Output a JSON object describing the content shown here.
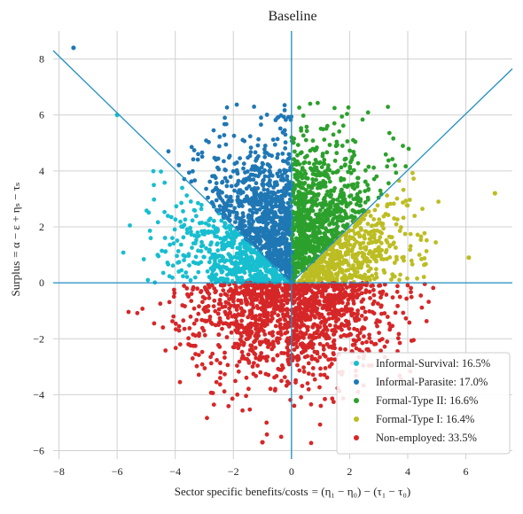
{
  "chart_data": {
    "type": "scatter",
    "title": "Baseline",
    "xlabel_main": "Sector specific benefits/costs",
    "xlabel_eq": "= (η₁ − η₀) − (τ₁ − τ₀)",
    "ylabel_main": "Surplus",
    "ylabel_eq": "= α − ε + ηₛ − τₛ",
    "xlim": [
      -8.2,
      7.6
    ],
    "ylim": [
      -6.3,
      9.0
    ],
    "xticks": [
      -8,
      -6,
      -4,
      -2,
      0,
      2,
      4,
      6
    ],
    "yticks": [
      -6,
      -4,
      -2,
      0,
      2,
      4,
      6,
      8
    ],
    "grid": true,
    "legend_position": "lower-right",
    "boundary_color": "#1f8fc4",
    "boundaries": [
      {
        "name": "vertical",
        "points": [
          [
            0,
            -6.3
          ],
          [
            0,
            9.0
          ]
        ]
      },
      {
        "name": "horizontal",
        "points": [
          [
            -8.2,
            0
          ],
          [
            7.6,
            0
          ]
        ]
      },
      {
        "name": "left-diagonal",
        "points": [
          [
            -8.2,
            8.3
          ],
          [
            0,
            0
          ]
        ]
      },
      {
        "name": "right-diagonal",
        "points": [
          [
            0,
            0
          ],
          [
            7.6,
            7.65
          ]
        ]
      }
    ],
    "series": [
      {
        "name": "Informal-Survival: 16.5%",
        "share": 0.165,
        "color": "#17becf",
        "region": "informal-survival"
      },
      {
        "name": "Informal-Parasite: 17.0%",
        "share": 0.17,
        "color": "#1f77b4",
        "region": "informal-parasite"
      },
      {
        "name": "Formal-Type II: 16.6%",
        "share": 0.166,
        "color": "#2ca02c",
        "region": "formal-type-ii"
      },
      {
        "name": "Formal-Type  I: 16.4%",
        "share": 0.164,
        "color": "#bcbd22",
        "region": "formal-type-i"
      },
      {
        "name": "Non-employed: 33.5%",
        "share": 0.335,
        "color": "#d62728",
        "region": "non-employed"
      }
    ],
    "notable_points": [
      {
        "x": -7.5,
        "y": 8.4
      },
      {
        "x": 7.0,
        "y": 3.2
      },
      {
        "x": 6.1,
        "y": 0.9
      },
      {
        "x": -1.0,
        "y": -5.7
      },
      {
        "x": -6.0,
        "y": 6.0
      }
    ]
  }
}
